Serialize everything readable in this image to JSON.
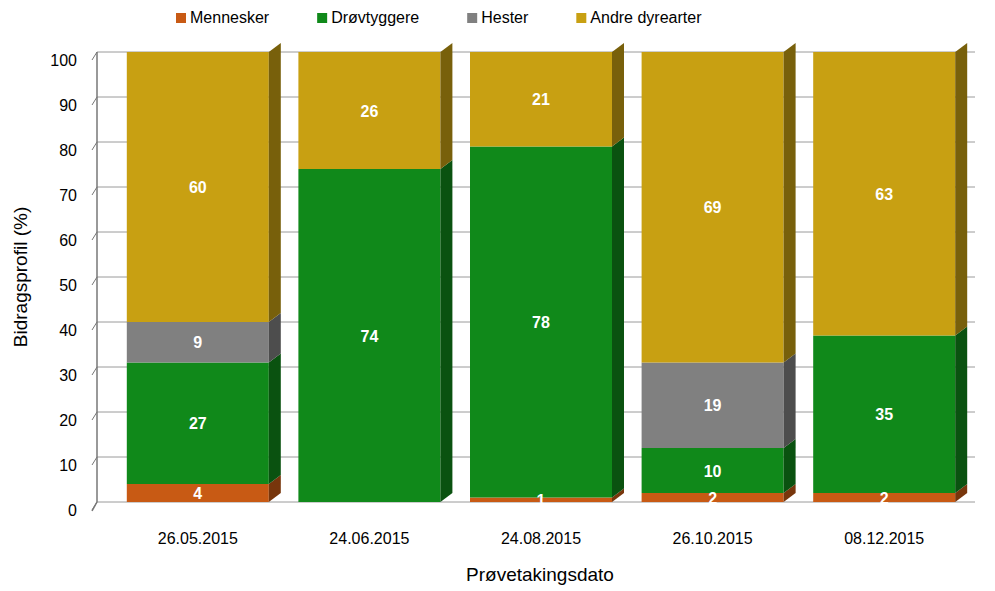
{
  "chart_data": {
    "type": "bar",
    "stacked": true,
    "categories": [
      "26.05.2015",
      "24.06.2015",
      "24.08.2015",
      "26.10.2015",
      "08.12.2015"
    ],
    "series": [
      {
        "name": "Mennesker",
        "color": "#c85a14",
        "values": [
          4,
          null,
          1,
          2,
          2
        ]
      },
      {
        "name": "Drøvtyggere",
        "color": "#10891a",
        "values": [
          27,
          74,
          78,
          10,
          35
        ]
      },
      {
        "name": "Hester",
        "color": "#808080",
        "values": [
          9,
          null,
          null,
          19,
          null
        ]
      },
      {
        "name": "Andre dyrearter",
        "color": "#c8a012",
        "values": [
          60,
          26,
          21,
          69,
          63
        ]
      }
    ],
    "x_label": "Prøvetakingsdato",
    "y_label": "Bidragsprofil (%)",
    "ylim": [
      0,
      100
    ],
    "yticks": [
      0,
      10,
      20,
      30,
      40,
      50,
      60,
      70,
      80,
      90,
      100
    ],
    "grid": true,
    "legend": "top",
    "data_labels": true
  }
}
